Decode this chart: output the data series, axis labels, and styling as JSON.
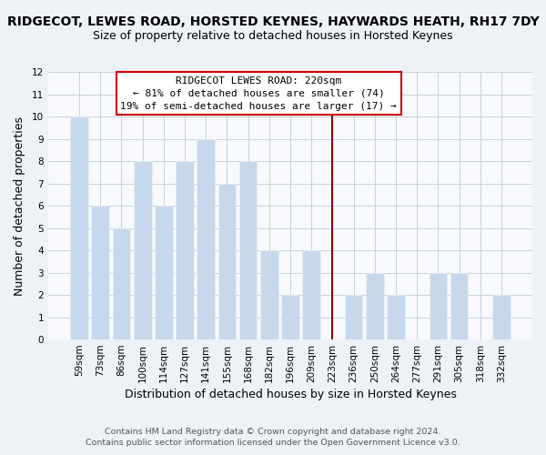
{
  "title": "RIDGECOT, LEWES ROAD, HORSTED KEYNES, HAYWARDS HEATH, RH17 7DY",
  "subtitle": "Size of property relative to detached houses in Horsted Keynes",
  "xlabel": "Distribution of detached houses by size in Horsted Keynes",
  "ylabel": "Number of detached properties",
  "footer_line1": "Contains HM Land Registry data © Crown copyright and database right 2024.",
  "footer_line2": "Contains public sector information licensed under the Open Government Licence v3.0.",
  "bar_labels": [
    "59sqm",
    "73sqm",
    "86sqm",
    "100sqm",
    "114sqm",
    "127sqm",
    "141sqm",
    "155sqm",
    "168sqm",
    "182sqm",
    "196sqm",
    "209sqm",
    "223sqm",
    "236sqm",
    "250sqm",
    "264sqm",
    "277sqm",
    "291sqm",
    "305sqm",
    "318sqm",
    "332sqm"
  ],
  "bar_values": [
    10,
    6,
    5,
    8,
    6,
    8,
    9,
    7,
    8,
    4,
    2,
    4,
    0,
    2,
    3,
    2,
    0,
    3,
    3,
    0,
    2
  ],
  "bar_color": "#c8d8ec",
  "bar_edge_color": "#e8eef4",
  "reference_line_index": 12,
  "annotation_title": "RIDGECOT LEWES ROAD: 220sqm",
  "annotation_line1": "← 81% of detached houses are smaller (74)",
  "annotation_line2": "19% of semi-detached houses are larger (17) →",
  "ylim": [
    0,
    12
  ],
  "yticks": [
    0,
    1,
    2,
    3,
    4,
    5,
    6,
    7,
    8,
    9,
    10,
    11,
    12
  ],
  "background_color": "#eef2f7",
  "plot_bg_color": "#f7f9fc",
  "grid_color": "#c8d0da",
  "title_fontsize": 10,
  "subtitle_fontsize": 9,
  "xlabel_fontsize": 9,
  "ylabel_fontsize": 9,
  "tick_fontsize": 7.5,
  "footer_fontsize": 6.8,
  "annotation_fontsize": 8
}
